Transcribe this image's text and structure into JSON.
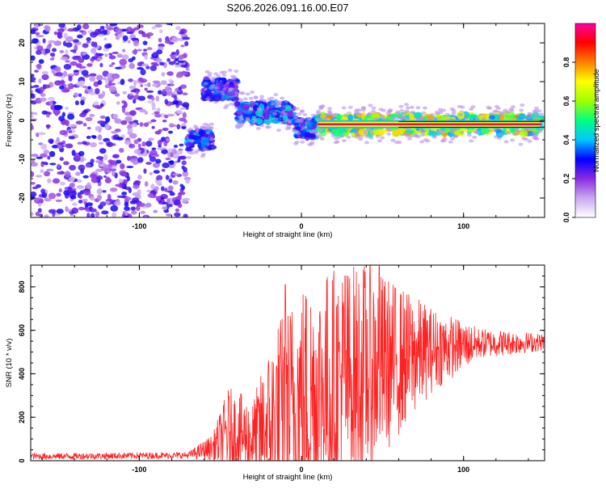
{
  "title": "S206.2026.091.16.00.E07",
  "charts": [
    {
      "type": "heatmap",
      "name": "spectrogram",
      "xlabel": "Height of straight line (km)",
      "ylabel": "Frequency (Hz)",
      "xlim": [
        -167,
        150
      ],
      "ylim": [
        -25,
        25
      ],
      "xticks": [
        -100,
        0,
        100
      ],
      "yticks": [
        -20,
        -10,
        0,
        10,
        20
      ],
      "colorbar": {
        "label": "Normalized spectral amplitude",
        "range": [
          0,
          1
        ],
        "ticks": [
          0.0,
          0.2,
          0.4,
          0.6,
          0.8
        ],
        "tick_labels": [
          "0.0",
          "0.2",
          "0.4",
          "0.6",
          "0.8"
        ],
        "colors": [
          "#ffffff",
          "#c9a8f0",
          "#8a2be2",
          "#0000ff",
          "#00c8ff",
          "#00ff80",
          "#a0ff00",
          "#ffff00",
          "#ff8000",
          "#ff0000",
          "#ff00a0"
        ]
      },
      "carrier": {
        "x_start": 10,
        "x_end": 148,
        "freq": -1,
        "amplitude": 0.95
      },
      "features": [
        {
          "x_from": -167,
          "x_to": -70,
          "description": "noise",
          "amplitude": 0.25,
          "freq_range": [
            -25,
            25
          ]
        },
        {
          "x_from": -60,
          "x_to": -40,
          "freq": 8,
          "amplitude": 0.45
        },
        {
          "x_from": -70,
          "x_to": -55,
          "freq": -5,
          "amplitude": 0.45
        },
        {
          "x_from": -40,
          "x_to": -5,
          "freq": 2,
          "amplitude": 0.5
        },
        {
          "x_from": -5,
          "x_to": 10,
          "freq": -2,
          "amplitude": 0.5
        },
        {
          "x_from": 10,
          "x_to": 148,
          "freq": -1,
          "amplitude": 0.9
        }
      ]
    },
    {
      "type": "line",
      "name": "snr",
      "xlabel": "Height of straight line (km)",
      "ylabel": "SNR (10 * v/v)",
      "xlim": [
        -167,
        150
      ],
      "ylim": [
        0,
        900
      ],
      "xticks": [
        -100,
        0,
        100
      ],
      "yticks": [
        0,
        200,
        400,
        600,
        800
      ],
      "color": "#ff2222",
      "envelope": [
        {
          "x": -167,
          "base": 20,
          "spread": 15
        },
        {
          "x": -70,
          "base": 25,
          "spread": 15
        },
        {
          "x": -55,
          "base": 60,
          "spread": 60
        },
        {
          "x": -45,
          "base": 140,
          "spread": 200
        },
        {
          "x": -30,
          "base": 100,
          "spread": 180
        },
        {
          "x": -15,
          "base": 200,
          "spread": 450
        },
        {
          "x": 0,
          "base": 280,
          "spread": 550
        },
        {
          "x": 20,
          "base": 350,
          "spread": 550
        },
        {
          "x": 40,
          "base": 420,
          "spread": 500
        },
        {
          "x": 60,
          "base": 460,
          "spread": 350
        },
        {
          "x": 80,
          "base": 510,
          "spread": 200
        },
        {
          "x": 110,
          "base": 540,
          "spread": 70
        },
        {
          "x": 150,
          "base": 545,
          "spread": 40
        }
      ],
      "peaks": [
        {
          "x": -10,
          "y": 810
        },
        {
          "x": 27,
          "y": 850
        },
        {
          "x": 48,
          "y": 895
        }
      ]
    }
  ]
}
